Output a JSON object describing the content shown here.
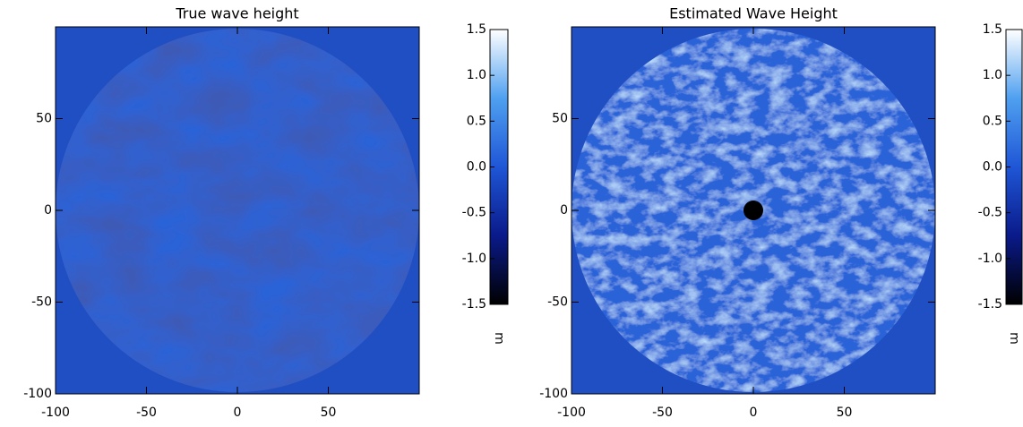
{
  "chart_data": [
    {
      "type": "heatmap",
      "title": "True wave height",
      "xlim": [
        -100,
        100
      ],
      "ylim": [
        -100,
        100
      ],
      "xticks": [
        -100,
        -50,
        0,
        50
      ],
      "yticks": [
        -100,
        -50,
        0,
        50
      ],
      "clim": [
        -1.5,
        1.5
      ],
      "cticks": [
        -1.5,
        {
          "value": -1,
          "label": "-1.0"
        },
        -0.5,
        {
          "value": 0,
          "label": "0.0"
        },
        0.5,
        {
          "value": 1,
          "label": "1.0"
        },
        1.5
      ],
      "colorbar_label": "m",
      "colormap": [
        "#000000",
        "#0a1a8a",
        "#1f56d6",
        "#4fa0f0",
        "#ffffff"
      ]
    },
    {
      "type": "heatmap",
      "title": "Estimated Wave Height",
      "xlim": [
        -100,
        100
      ],
      "ylim": [
        -100,
        100
      ],
      "xticks": [
        -100,
        -50,
        0,
        50
      ],
      "yticks": [
        -100,
        -50,
        0,
        50
      ],
      "clim": [
        -1.5,
        1.5
      ],
      "cticks": [
        -1.5,
        {
          "value": -1,
          "label": "-1.0"
        },
        -0.5,
        {
          "value": 0,
          "label": "0.0"
        },
        0.5,
        {
          "value": 1,
          "label": "1.0"
        },
        1.5
      ],
      "colorbar_label": "m",
      "colormap": [
        "#000000",
        "#0a1a8a",
        "#1f56d6",
        "#4fa0f0",
        "#ffffff"
      ]
    }
  ]
}
